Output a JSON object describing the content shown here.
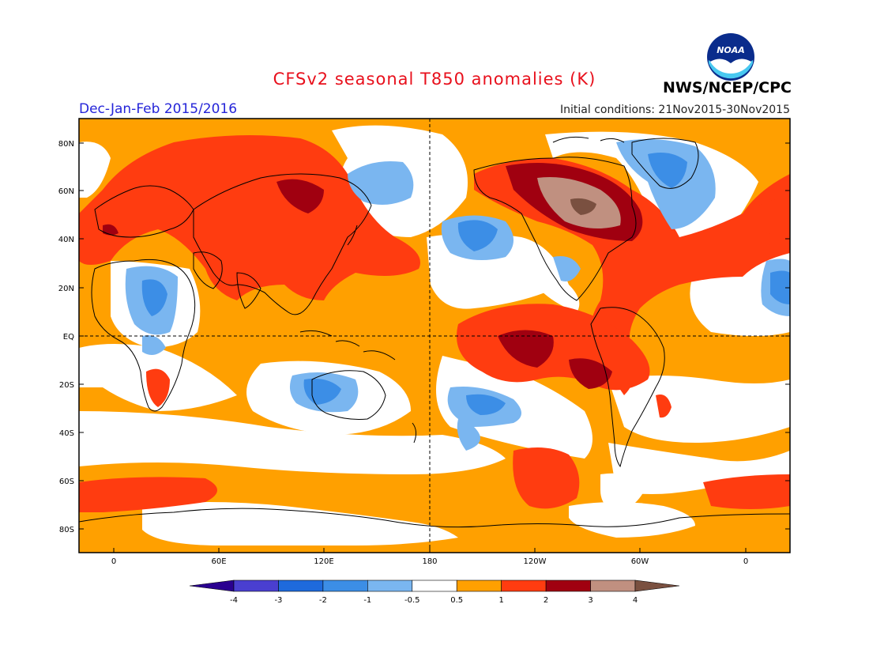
{
  "header": {
    "title": "CFSv2 seasonal T850 anomalies (K)",
    "season": "Dec-Jan-Feb 2015/2016",
    "initial_conditions": "Initial conditions: 21Nov2015-30Nov2015",
    "agency": "NWS/NCEP/CPC",
    "logo_text": "NOAA"
  },
  "map": {
    "lat_labels": [
      "80N",
      "60N",
      "40N",
      "20N",
      "EQ",
      "20S",
      "40S",
      "60S",
      "80S"
    ],
    "lon_labels": [
      "0",
      "60E",
      "120E",
      "180",
      "120W",
      "60W",
      "0"
    ]
  },
  "colorbar": {
    "labels": [
      "-4",
      "-3",
      "-2",
      "-1",
      "-0.5",
      "0.5",
      "1",
      "2",
      "3",
      "4"
    ],
    "colors": [
      "#2a0090",
      "#4a3fd0",
      "#1e6adc",
      "#3c8ee6",
      "#7ab6f0",
      "#ffffff",
      "#ffa000",
      "#ff3c10",
      "#a00010",
      "#c09080",
      "#7a5040"
    ]
  }
}
